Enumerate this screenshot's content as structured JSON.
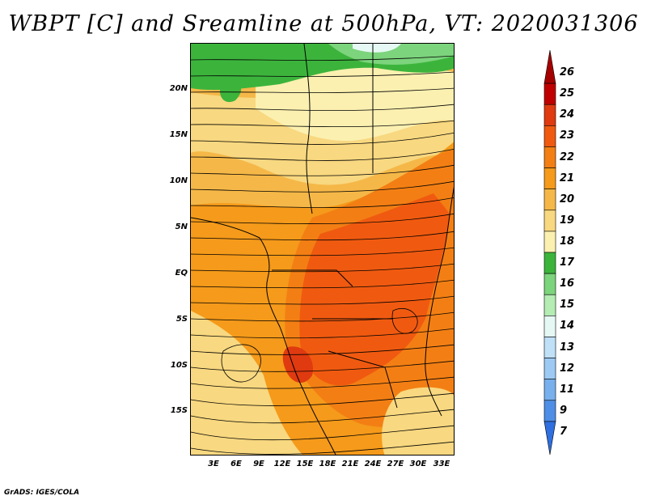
{
  "title": "WBPT [C] and Sreamline at 500hPa, VT: 2020031306",
  "credit": "GrADS: IGES/COLA",
  "lat_labels": [
    "20N",
    "15N",
    "10N",
    "5N",
    "EQ",
    "5S",
    "10S",
    "15S"
  ],
  "lon_labels": [
    "3E",
    "6E",
    "9E",
    "12E",
    "15E",
    "18E",
    "21E",
    "24E",
    "27E",
    "30E",
    "33E"
  ],
  "colorbar": {
    "labels": [
      "26",
      "25",
      "24",
      "23",
      "22",
      "21",
      "20",
      "19",
      "18",
      "17",
      "16",
      "15",
      "14",
      "13",
      "12",
      "11",
      "9",
      "7"
    ],
    "colors": [
      "#a50000",
      "#c00000",
      "#e03a10",
      "#f05a10",
      "#f37f14",
      "#f59a1a",
      "#f5b848",
      "#f8d880",
      "#fbf0b0",
      "#3cb43c",
      "#7cd47c",
      "#b4ecb4",
      "#e6f8f4",
      "#c0e0f8",
      "#9ccaf4",
      "#78b0ee",
      "#4e8ee6",
      "#2f6fe0"
    ]
  },
  "map": {
    "extent_lon": [
      0,
      35
    ],
    "extent_lat": [
      -20,
      25
    ]
  }
}
